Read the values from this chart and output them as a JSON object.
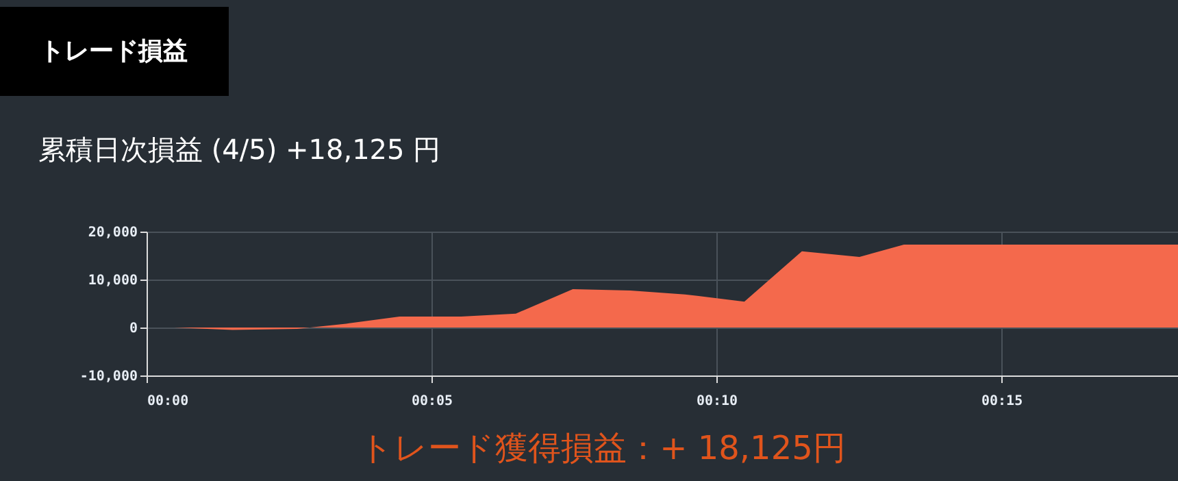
{
  "chart_data": {
    "type": "area",
    "title": "累積日次損益 (4/5) +18,125 円",
    "x": [
      0.47,
      1.51,
      2.64,
      3.5,
      4.44,
      5.52,
      6.48,
      7.48,
      8.49,
      9.45,
      10.49,
      11.5,
      12.51,
      13.29,
      18.1
    ],
    "series": [
      {
        "color": "#f4694c",
        "values": [
          0,
          -500,
          -300,
          800,
          2300,
          2300,
          2900,
          8000,
          7700,
          6900,
          5400,
          15900,
          14700,
          17300,
          17300
        ]
      }
    ],
    "xlim": [
      0,
      18.1
    ],
    "xticks": [
      {
        "value": 0,
        "label": "00:00"
      },
      {
        "value": 5,
        "label": "00:05"
      },
      {
        "value": 10,
        "label": "00:10"
      },
      {
        "value": 15,
        "label": "00:15"
      }
    ],
    "ylim": [
      -10000,
      20000
    ],
    "yticks": [
      {
        "value": -10000,
        "label": "-10,000"
      },
      {
        "value": 0,
        "label": "0"
      },
      {
        "value": 10000,
        "label": "10,000"
      },
      {
        "value": 20000,
        "label": "20,000"
      }
    ],
    "grid": true,
    "annotations": [
      "トレード損益",
      "トレード獲得損益：+ 18,125円"
    ]
  }
}
